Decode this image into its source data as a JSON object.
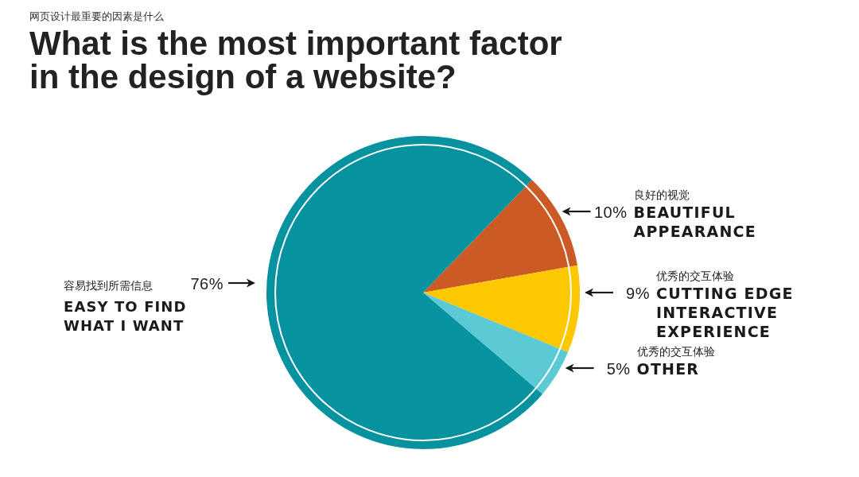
{
  "chart_data": {
    "type": "pie",
    "title": "What is the most important factor in the design of a website?",
    "subtitle": "网页设计最重要的因素是什么",
    "categories": [
      "良好的视觉\nBEAUTIFUL\nAPPEARANCE",
      "优秀的交互体验\nCUTTING EDGE\nINTERACTIVE\nEXPERIENCE",
      "优秀的交互体验\nOTHER",
      "容易找到所需信息\nEASY TO FIND\nWHAT I WANT"
    ],
    "values": [
      10,
      9,
      5,
      76
    ],
    "colors": [
      "#cc5a24",
      "#fdc800",
      "#5ccad4",
      "#07929f"
    ],
    "value_labels": [
      "10%",
      "9%",
      "5%",
      "76%"
    ]
  }
}
